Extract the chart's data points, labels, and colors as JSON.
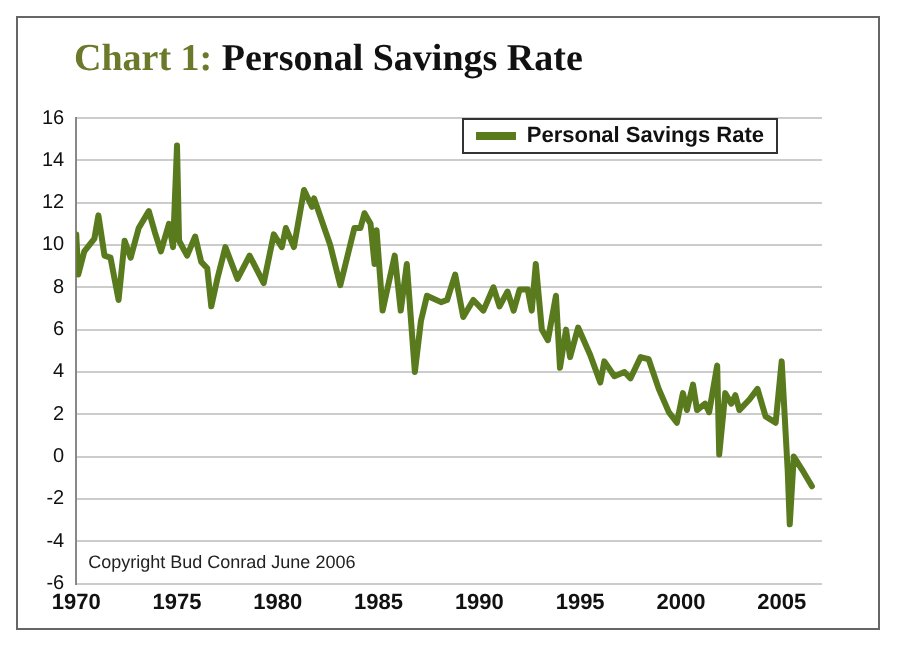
{
  "chart_data": {
    "type": "line",
    "title": "Chart 1: Personal Savings Rate",
    "xlim": [
      1970,
      2007
    ],
    "xticks": [
      1970,
      1975,
      1980,
      1985,
      1990,
      1995,
      2000,
      2005
    ],
    "ylim": [
      -6,
      16
    ],
    "yticks": [
      -6,
      -4,
      -2,
      0,
      2,
      4,
      6,
      8,
      10,
      12,
      14,
      16
    ],
    "grid": "y",
    "legend": "top right",
    "marker": "none",
    "line_style": "solid",
    "annotations": [
      "Copyright Bud Conrad June 2006"
    ],
    "series": [
      {
        "name": "Personal Savings Rate",
        "color": "#5a7a1e",
        "x": [
          1970.0,
          1970.1,
          1970.4,
          1970.9,
          1971.1,
          1971.4,
          1971.7,
          1972.1,
          1972.4,
          1972.7,
          1973.1,
          1973.6,
          1973.9,
          1974.2,
          1974.6,
          1974.8,
          1975.0,
          1975.1,
          1975.5,
          1975.9,
          1976.2,
          1976.5,
          1976.7,
          1977.0,
          1977.4,
          1978.0,
          1978.6,
          1979.3,
          1979.8,
          1980.2,
          1980.4,
          1980.8,
          1981.3,
          1981.7,
          1981.8,
          1982.6,
          1983.1,
          1983.8,
          1984.1,
          1984.3,
          1984.6,
          1984.8,
          1984.9,
          1985.2,
          1985.8,
          1986.1,
          1986.4,
          1986.8,
          1987.1,
          1987.4,
          1988.1,
          1988.4,
          1988.8,
          1989.2,
          1989.7,
          1990.2,
          1990.7,
          1991.0,
          1991.4,
          1991.7,
          1992.0,
          1992.4,
          1992.6,
          1992.8,
          1993.1,
          1993.4,
          1993.8,
          1994.0,
          1994.3,
          1994.5,
          1994.9,
          1995.5,
          1996.0,
          1996.2,
          1996.7,
          1997.2,
          1997.5,
          1998.0,
          1998.4,
          1998.9,
          1999.4,
          1999.8,
          2000.1,
          2000.3,
          2000.6,
          2000.8,
          2001.2,
          2001.4,
          2001.8,
          2001.9,
          2002.2,
          2002.5,
          2002.7,
          2002.9,
          2003.4,
          2003.8,
          2004.2,
          2004.7,
          2005.0,
          2005.3,
          2005.4,
          2005.6,
          2006.0,
          2006.5
        ],
        "values": [
          10.5,
          8.6,
          9.7,
          10.3,
          11.4,
          9.5,
          9.4,
          7.4,
          10.2,
          9.4,
          10.8,
          11.6,
          10.6,
          9.7,
          11,
          9.9,
          14.7,
          10.2,
          9.5,
          10.4,
          9.2,
          8.9,
          7.1,
          8.4,
          9.9,
          8.4,
          9.5,
          8.2,
          10.5,
          9.9,
          10.8,
          9.9,
          12.6,
          11.8,
          12.2,
          10,
          8.1,
          10.8,
          10.8,
          11.5,
          11,
          9.1,
          10.7,
          6.9,
          9.5,
          6.9,
          9.1,
          4,
          6.4,
          7.6,
          7.3,
          7.4,
          8.6,
          6.6,
          7.4,
          6.9,
          8.0,
          7.1,
          7.8,
          6.9,
          7.9,
          7.9,
          6.9,
          9.1,
          6.0,
          5.5,
          7.6,
          4.2,
          6.0,
          4.7,
          6.1,
          4.8,
          3.5,
          4.5,
          3.8,
          4.0,
          3.7,
          4.7,
          4.6,
          3.2,
          2.1,
          1.6,
          3.0,
          2.2,
          3.4,
          2.2,
          2.5,
          2.1,
          4.3,
          0.1,
          3.0,
          2.5,
          2.9,
          2.2,
          2.7,
          3.2,
          1.9,
          1.6,
          4.5,
          -0.7,
          -3.2,
          0,
          -0.6,
          -1.4
        ]
      }
    ]
  }
}
